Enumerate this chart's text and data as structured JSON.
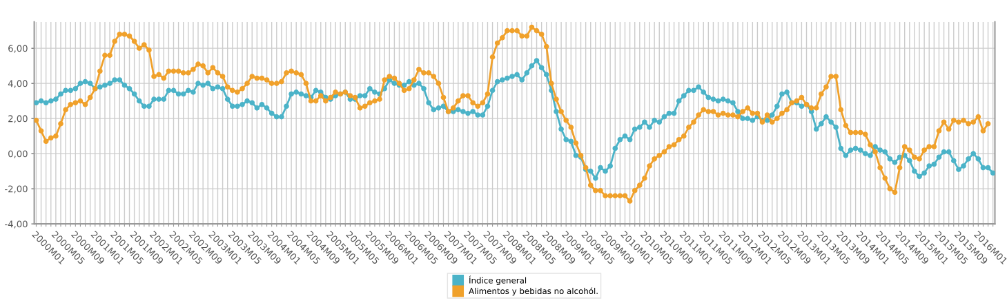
{
  "chart_data": {
    "type": "line",
    "categories": [
      "2000M01",
      null,
      null,
      null,
      "2000M05",
      null,
      null,
      null,
      "2000M09",
      null,
      null,
      null,
      "2001M01",
      null,
      null,
      null,
      "2001M05",
      null,
      null,
      null,
      "2001M09",
      null,
      null,
      null,
      "2002M01",
      null,
      null,
      null,
      "2002M05",
      null,
      null,
      null,
      "2002M09",
      null,
      null,
      null,
      "2003M01",
      null,
      null,
      null,
      "2003M05",
      null,
      null,
      null,
      "2003M09",
      null,
      null,
      null,
      "2004M01",
      null,
      null,
      null,
      "2004M05",
      null,
      null,
      null,
      "2004M09",
      null,
      null,
      null,
      "2005M01",
      null,
      null,
      null,
      "2005M05",
      null,
      null,
      null,
      "2005M09",
      null,
      null,
      null,
      "2006M01",
      null,
      null,
      null,
      "2006M05",
      null,
      null,
      null,
      "2006M09",
      null,
      null,
      null,
      "2007M01",
      null,
      null,
      null,
      "2007M05",
      null,
      null,
      null,
      "2007M09",
      null,
      null,
      null,
      "2008M01",
      null,
      null,
      null,
      "2008M05",
      null,
      null,
      null,
      "2008M09",
      null,
      null,
      null,
      "2009M01",
      null,
      null,
      null,
      "2009M05",
      null,
      null,
      null,
      "2009M09",
      null,
      null,
      null,
      "2010M01",
      null,
      null,
      null,
      "2010M05",
      null,
      null,
      null,
      "2010M09",
      null,
      null,
      null,
      "2011M01",
      null,
      null,
      null,
      "2011M05",
      null,
      null,
      null,
      "2011M09",
      null,
      null,
      null,
      "2012M01",
      null,
      null,
      null,
      "2012M05",
      null,
      null,
      null,
      "2012M09",
      null,
      null,
      null,
      "2013M01",
      null,
      null,
      null,
      "2013M05",
      null,
      null,
      null,
      "2013M09",
      null,
      null,
      null,
      "2014M01",
      null,
      null,
      null,
      "2014M05",
      null,
      null,
      null,
      "2014M09",
      null,
      null,
      null,
      "2015M01",
      null,
      null,
      null,
      "2015M05",
      null,
      null,
      null,
      "2015M09",
      null,
      null,
      null,
      "2016M01",
      null,
      null,
      null
    ],
    "series": [
      {
        "name": "Índice general",
        "color": "#4bb3c8",
        "values": [
          2.9,
          3.0,
          2.9,
          3.0,
          3.1,
          3.4,
          3.6,
          3.6,
          3.7,
          4.0,
          4.1,
          4.0,
          3.7,
          3.8,
          3.9,
          4.0,
          4.2,
          4.2,
          3.9,
          3.7,
          3.4,
          3.0,
          2.7,
          2.7,
          3.1,
          3.1,
          3.1,
          3.6,
          3.6,
          3.4,
          3.4,
          3.6,
          3.5,
          4.0,
          3.9,
          4.0,
          3.7,
          3.8,
          3.7,
          3.1,
          2.7,
          2.7,
          2.8,
          3.0,
          2.9,
          2.6,
          2.8,
          2.6,
          2.3,
          2.1,
          2.1,
          2.7,
          3.4,
          3.5,
          3.4,
          3.3,
          3.2,
          3.6,
          3.5,
          3.2,
          3.1,
          3.3,
          3.4,
          3.5,
          3.1,
          3.1,
          3.3,
          3.3,
          3.7,
          3.5,
          3.4,
          3.7,
          4.2,
          4.0,
          3.9,
          3.9,
          4.1,
          3.9,
          4.0,
          3.7,
          2.9,
          2.5,
          2.6,
          2.7,
          2.4,
          2.4,
          2.5,
          2.4,
          2.3,
          2.4,
          2.2,
          2.2,
          2.7,
          3.6,
          4.1,
          4.2,
          4.3,
          4.4,
          4.5,
          4.2,
          4.6,
          5.0,
          5.3,
          4.9,
          4.5,
          3.6,
          2.4,
          1.4,
          0.8,
          0.7,
          -0.1,
          -0.2,
          -0.9,
          -1.0,
          -1.4,
          -0.8,
          -1.0,
          -0.7,
          0.3,
          0.8,
          1.0,
          0.8,
          1.4,
          1.5,
          1.8,
          1.5,
          1.9,
          1.8,
          2.1,
          2.3,
          2.3,
          3.0,
          3.3,
          3.6,
          3.6,
          3.8,
          3.5,
          3.2,
          3.1,
          3.0,
          3.1,
          3.0,
          2.9,
          2.4,
          2.0,
          2.0,
          1.9,
          2.1,
          1.9,
          1.9,
          2.2,
          2.7,
          3.4,
          3.5,
          2.9,
          2.9,
          2.7,
          2.8,
          2.4,
          1.4,
          1.7,
          2.1,
          1.8,
          1.5,
          0.3,
          -0.1,
          0.2,
          0.3,
          0.2,
          0.0,
          -0.1,
          0.4,
          0.2,
          0.1,
          -0.3,
          -0.5,
          -0.2,
          -0.1,
          -0.4,
          -1.0,
          -1.3,
          -1.1,
          -0.7,
          -0.6,
          -0.2,
          0.1,
          0.1,
          -0.4,
          -0.9,
          -0.7,
          -0.3,
          0.0,
          -0.3,
          -0.8,
          -0.8,
          -1.1
        ]
      },
      {
        "name": "Alimentos y bebidas no alcohól.",
        "color": "#f0a12b",
        "values": [
          1.9,
          1.3,
          0.7,
          0.9,
          1.0,
          1.7,
          2.5,
          2.8,
          2.9,
          3.0,
          2.8,
          3.2,
          3.7,
          4.7,
          5.6,
          5.6,
          6.4,
          6.8,
          6.8,
          6.7,
          6.4,
          6.0,
          6.2,
          5.9,
          4.4,
          4.5,
          4.3,
          4.7,
          4.7,
          4.7,
          4.6,
          4.6,
          4.8,
          5.1,
          5.0,
          4.6,
          4.9,
          4.6,
          4.4,
          3.8,
          3.6,
          3.5,
          3.7,
          4.0,
          4.4,
          4.3,
          4.3,
          4.2,
          4.0,
          4.0,
          4.1,
          4.6,
          4.7,
          4.6,
          4.5,
          4.0,
          3.0,
          3.0,
          3.3,
          3.0,
          3.2,
          3.5,
          3.4,
          3.5,
          3.3,
          3.2,
          2.6,
          2.7,
          2.9,
          3.0,
          3.1,
          4.2,
          4.4,
          4.3,
          4.0,
          3.6,
          3.7,
          4.2,
          4.8,
          4.6,
          4.6,
          4.4,
          4.0,
          3.2,
          2.4,
          2.6,
          3.0,
          3.3,
          3.3,
          2.9,
          2.7,
          2.9,
          3.4,
          5.5,
          6.3,
          6.6,
          7.0,
          7.0,
          7.0,
          6.7,
          6.7,
          7.2,
          7.0,
          6.8,
          6.1,
          4.0,
          3.1,
          2.4,
          1.9,
          1.5,
          0.6,
          -0.1,
          -0.8,
          -1.8,
          -2.1,
          -2.1,
          -2.4,
          -2.4,
          -2.4,
          -2.4,
          -2.4,
          -2.7,
          -2.1,
          -1.8,
          -1.4,
          -0.7,
          -0.3,
          -0.1,
          0.1,
          0.4,
          0.5,
          0.8,
          1.0,
          1.5,
          1.8,
          2.2,
          2.5,
          2.4,
          2.4,
          2.2,
          2.3,
          2.2,
          2.2,
          2.1,
          2.4,
          2.6,
          2.3,
          2.3,
          1.8,
          2.2,
          1.8,
          2.0,
          2.3,
          2.5,
          2.9,
          3.0,
          3.2,
          2.8,
          2.6,
          2.6,
          3.4,
          3.8,
          4.4,
          4.4,
          2.5,
          1.6,
          1.2,
          1.2,
          1.2,
          1.1,
          0.5,
          0.1,
          -0.8,
          -1.4,
          -2.0,
          -2.2,
          -0.8,
          0.4,
          0.2,
          -0.2,
          -0.3,
          0.2,
          0.4,
          0.4,
          1.3,
          1.8,
          1.4,
          1.9,
          1.8,
          1.9,
          1.7,
          1.8,
          2.1,
          1.3,
          1.7,
          null
        ]
      }
    ],
    "ylim": [
      -4,
      7.5
    ],
    "yticks": [
      {
        "value": -4,
        "label": "-4,00"
      },
      {
        "value": -2,
        "label": "-2,00"
      },
      {
        "value": 0,
        "label": "0,00"
      },
      {
        "value": 2,
        "label": "2,00"
      },
      {
        "value": 4,
        "label": "4,00"
      },
      {
        "value": 6,
        "label": "6,00"
      }
    ],
    "grid": true,
    "legend": "bottom",
    "marker": "circle",
    "line_style": "solid"
  }
}
